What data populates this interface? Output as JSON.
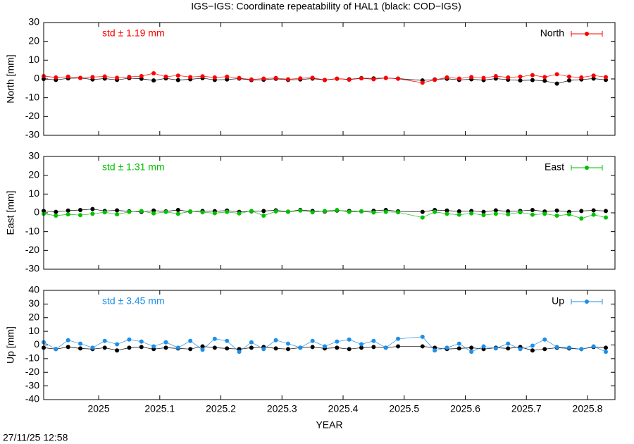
{
  "title": "IGS−IGS: Coordinate repeatability of HAL1 (black: COD−IGS)",
  "timestamp": "27/11/25 12:58",
  "chart_data": [
    {
      "type": "line",
      "ylabel": "North [mm]",
      "annotation": "std ± 1.19 mm",
      "xlim": [
        2024.91,
        2025.845
      ],
      "xticks": [
        2025,
        2025.1,
        2025.2,
        2025.3,
        2025.4,
        2025.5,
        2025.6,
        2025.7,
        2025.8
      ],
      "ylim": [
        -30,
        30
      ],
      "yticks": [
        -30,
        -20,
        -10,
        0,
        10,
        20,
        30
      ],
      "legend": "top-right",
      "x": [
        2024.91,
        2024.93,
        2024.95,
        2024.97,
        2024.99,
        2025.01,
        2025.03,
        2025.05,
        2025.07,
        2025.09,
        2025.11,
        2025.13,
        2025.15,
        2025.17,
        2025.19,
        2025.21,
        2025.23,
        2025.25,
        2025.27,
        2025.29,
        2025.31,
        2025.33,
        2025.35,
        2025.37,
        2025.39,
        2025.41,
        2025.43,
        2025.45,
        2025.47,
        2025.49,
        2025.53,
        2025.55,
        2025.57,
        2025.59,
        2025.61,
        2025.63,
        2025.65,
        2025.67,
        2025.69,
        2025.71,
        2025.73,
        2025.75,
        2025.77,
        2025.79,
        2025.81,
        2025.83
      ],
      "series": [
        {
          "color": "#000000",
          "values": [
            0,
            -0.5,
            0.3,
            0.5,
            -0.3,
            0.2,
            -0.5,
            0.4,
            0.1,
            -0.8,
            0.3,
            -0.6,
            -0.2,
            0.4,
            -0.5,
            -0.3,
            0.2,
            -0.6,
            -0.4,
            0.1,
            -0.5,
            -0.3,
            0.2,
            -0.6,
            0.1,
            -0.2,
            0.4,
            0.3,
            0.5,
            0.2,
            -0.8,
            -0.3,
            0.1,
            -0.5,
            -0.2,
            -0.6,
            0.2,
            -0.4,
            -0.8,
            -0.6,
            -1.0,
            -2.5,
            -0.8,
            -0.3,
            0.2,
            -0.5
          ]
        },
        {
          "name": "North",
          "color": "#ff0000",
          "values": [
            1.5,
            0.8,
            1.2,
            0.5,
            1.0,
            1.3,
            0.6,
            1.1,
            1.5,
            3.0,
            1.2,
            1.8,
            1.0,
            1.4,
            0.8,
            1.2,
            0.5,
            -0.3,
            0.2,
            0.5,
            -0.2,
            0.3,
            0.6,
            -0.5,
            0.2,
            -0.4,
            0.3,
            -0.2,
            0.5,
            0.1,
            -2.0,
            -0.5,
            0.8,
            0.2,
            1.0,
            0.5,
            1.5,
            0.8,
            1.2,
            2.0,
            1.0,
            2.5,
            1.2,
            0.8,
            1.8,
            1.0
          ]
        }
      ]
    },
    {
      "type": "line",
      "ylabel": "East [mm]",
      "annotation": "std ± 1.31 mm",
      "xlim": [
        2024.91,
        2025.845
      ],
      "xticks": [
        2025,
        2025.1,
        2025.2,
        2025.3,
        2025.4,
        2025.5,
        2025.6,
        2025.7,
        2025.8
      ],
      "ylim": [
        -30,
        30
      ],
      "yticks": [
        -30,
        -20,
        -10,
        0,
        10,
        20,
        30
      ],
      "legend": "top-right",
      "x": [
        2024.91,
        2024.93,
        2024.95,
        2024.97,
        2024.99,
        2025.01,
        2025.03,
        2025.05,
        2025.07,
        2025.09,
        2025.11,
        2025.13,
        2025.15,
        2025.17,
        2025.19,
        2025.21,
        2025.23,
        2025.25,
        2025.27,
        2025.29,
        2025.31,
        2025.33,
        2025.35,
        2025.37,
        2025.39,
        2025.41,
        2025.43,
        2025.45,
        2025.47,
        2025.49,
        2025.53,
        2025.55,
        2025.57,
        2025.59,
        2025.61,
        2025.63,
        2025.65,
        2025.67,
        2025.69,
        2025.71,
        2025.73,
        2025.75,
        2025.77,
        2025.79,
        2025.81,
        2025.83
      ],
      "series": [
        {
          "color": "#000000",
          "values": [
            1.0,
            0.5,
            1.2,
            1.5,
            2.0,
            1.0,
            1.3,
            0.8,
            0.5,
            1.2,
            0.8,
            1.5,
            0.6,
            1.0,
            0.9,
            1.2,
            0.5,
            0.8,
            1.0,
            1.3,
            0.6,
            1.5,
            1.0,
            0.7,
            1.2,
            1.0,
            0.8,
            1.1,
            1.5,
            0.8,
            0.5,
            1.5,
            1.2,
            0.8,
            1.0,
            0.5,
            1.3,
            0.8,
            1.0,
            1.5,
            0.7,
            1.2,
            0.5,
            1.0,
            1.3,
            1.0
          ]
        },
        {
          "name": "East",
          "color": "#00c000",
          "values": [
            -0.5,
            -1.5,
            -0.8,
            -1.2,
            -0.5,
            0.3,
            -0.8,
            0.5,
            1.0,
            -0.3,
            0.5,
            -0.5,
            0.8,
            0.3,
            -0.2,
            0.5,
            -0.3,
            1.0,
            -1.5,
            0.8,
            0.5,
            1.2,
            0.3,
            1.0,
            1.5,
            0.5,
            0.8,
            0.2,
            0.5,
            0.3,
            -2.5,
            0.5,
            -0.5,
            -1.0,
            -0.3,
            -1.2,
            -0.5,
            -0.8,
            0.3,
            -1.0,
            -0.5,
            -1.5,
            -0.8,
            -3.0,
            -1.0,
            -2.5
          ]
        }
      ]
    },
    {
      "type": "line",
      "ylabel": "Up [mm]",
      "xlabel": "YEAR",
      "annotation": "std ± 3.45 mm",
      "xlim": [
        2024.91,
        2025.845
      ],
      "xticks": [
        2025,
        2025.1,
        2025.2,
        2025.3,
        2025.4,
        2025.5,
        2025.6,
        2025.7,
        2025.8
      ],
      "ylim": [
        -40,
        40
      ],
      "yticks": [
        -40,
        -30,
        -20,
        -10,
        0,
        10,
        20,
        30,
        40
      ],
      "legend": "top-right",
      "x": [
        2024.91,
        2024.93,
        2024.95,
        2024.97,
        2024.99,
        2025.01,
        2025.03,
        2025.05,
        2025.07,
        2025.09,
        2025.11,
        2025.13,
        2025.15,
        2025.17,
        2025.19,
        2025.21,
        2025.23,
        2025.25,
        2025.27,
        2025.29,
        2025.31,
        2025.33,
        2025.35,
        2025.37,
        2025.39,
        2025.41,
        2025.43,
        2025.45,
        2025.47,
        2025.49,
        2025.53,
        2025.55,
        2025.57,
        2025.59,
        2025.61,
        2025.63,
        2025.65,
        2025.67,
        2025.69,
        2025.71,
        2025.73,
        2025.75,
        2025.77,
        2025.79,
        2025.81,
        2025.83
      ],
      "series": [
        {
          "color": "#000000",
          "values": [
            -2,
            -3,
            -1.5,
            -2.5,
            -3,
            -2,
            -4,
            -2,
            -1.5,
            -3,
            -2,
            -2.5,
            -3,
            -1,
            -2,
            -2.5,
            -3,
            -2,
            -1.5,
            -2.5,
            -3,
            -2,
            -1.5,
            -2.5,
            -2,
            -3,
            -2,
            -1.5,
            -2,
            -1,
            -1,
            -2,
            -3,
            -2.5,
            -2,
            -3,
            -2,
            -2.5,
            -1.5,
            -4,
            -3,
            -2,
            -2.5,
            -3,
            -1.5,
            -2
          ]
        },
        {
          "name": "Up",
          "color": "#1e8fe8",
          "values": [
            2.0,
            -3.0,
            3.5,
            1.0,
            -2.0,
            3.0,
            0.5,
            4.0,
            2.5,
            -1.0,
            2.0,
            -2.0,
            3.0,
            -3.5,
            4.5,
            3.0,
            -5.0,
            2.0,
            -3.0,
            3.5,
            1.0,
            -2.0,
            3.0,
            -1.0,
            2.5,
            4.0,
            0.5,
            3.0,
            -2.0,
            4.5,
            6.0,
            -4.0,
            -2.0,
            1.0,
            -5.0,
            -1.0,
            -2.5,
            1.0,
            -3.0,
            -0.5,
            4.0,
            -1.5,
            -2.0,
            -3.0,
            -1.0,
            -5.0
          ]
        }
      ]
    }
  ]
}
